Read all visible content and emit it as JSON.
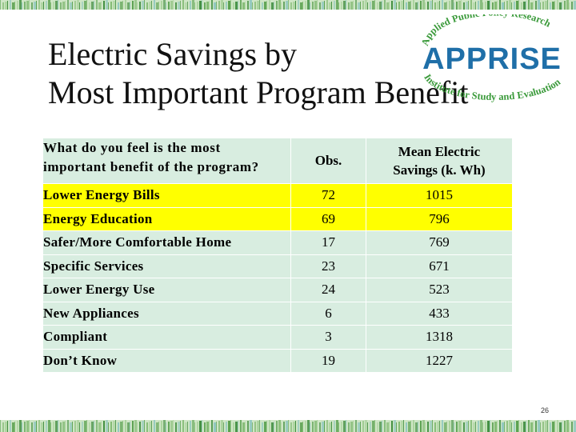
{
  "slide": {
    "title_line1": "Electric Savings by",
    "title_line2": "Most Important Program Benefit",
    "page_number": "26"
  },
  "logo": {
    "top_text": "Applied Public Policy Research",
    "main_text": "APPRISE",
    "bottom_text": "Institute for Study and Evaluation",
    "colors": {
      "main": "#1f6fa8",
      "arc": "#3a9a3a"
    }
  },
  "table": {
    "headers": {
      "question_line1": "What do you feel is the most",
      "question_line2": "important benefit of the program?",
      "obs": "Obs.",
      "mean_line1": "Mean Electric",
      "mean_line2": "Savings (k. Wh)"
    },
    "rows": [
      {
        "benefit": "Lower Energy Bills",
        "obs": "72",
        "mean": "1015",
        "highlight": true
      },
      {
        "benefit": "Energy Education",
        "obs": "69",
        "mean": "796",
        "highlight": true
      },
      {
        "benefit": "Safer/More Comfortable Home",
        "obs": "17",
        "mean": "769",
        "highlight": false
      },
      {
        "benefit": "Specific Services",
        "obs": "23",
        "mean": "671",
        "highlight": false
      },
      {
        "benefit": "Lower Energy Use",
        "obs": "24",
        "mean": "523",
        "highlight": false
      },
      {
        "benefit": "New Appliances",
        "obs": "6",
        "mean": "433",
        "highlight": false
      },
      {
        "benefit": "Compliant",
        "obs": "3",
        "mean": "1318",
        "highlight": false
      },
      {
        "benefit": "Don’t Know",
        "obs": "19",
        "mean": "1227",
        "highlight": false
      }
    ],
    "colors": {
      "highlight": "#ffff00",
      "row": "#d8ede0"
    }
  }
}
